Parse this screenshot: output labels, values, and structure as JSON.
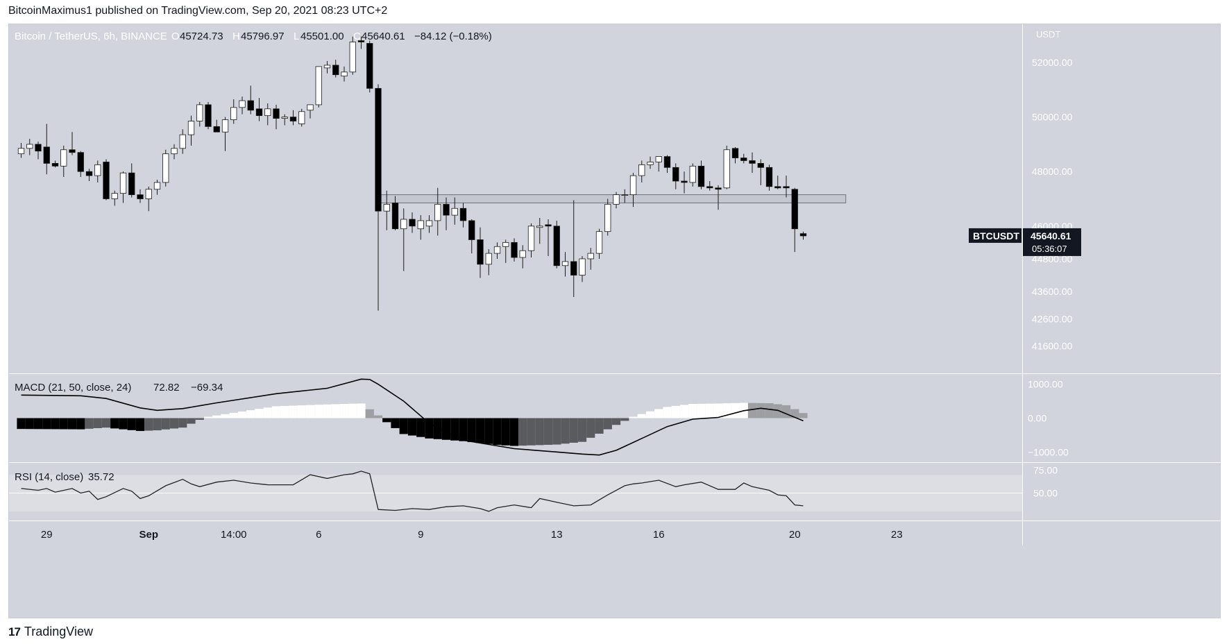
{
  "header": {
    "publish_line": "BitcoinMaximus1 published on TradingView.com, Sep 20, 2021 08:23 UTC+2"
  },
  "footer": {
    "brand_mark": "17",
    "brand": "TradingView"
  },
  "colors": {
    "background": "#d1d4dc",
    "up_body": "#ffffff",
    "down_body": "#000000",
    "wick": "#1a1a1a",
    "zone_fill": "#c4c7cf",
    "zone_stroke": "#6e7079",
    "macd_line": "#000000",
    "rsi_band": "#dcdee4",
    "hist_pos_rising": "#ffffff",
    "hist_pos_falling": "#9e9fa3",
    "hist_neg_falling": "#000000",
    "hist_neg_rising": "#5a5b5e"
  },
  "chart_data": [
    {
      "type": "candlestick",
      "symbol": "Bitcoin / TetherUS, 6h, BINANCE",
      "ohlc_legend": {
        "o_label": "O",
        "o_value": "45724.73",
        "h_label": "H",
        "h_value": "45796.97",
        "l_label": "L",
        "l_value": "45501.00",
        "c_label": "C",
        "c_value": "45640.61",
        "change": "−84.12 (−0.18%)"
      },
      "currency_label": "USDT",
      "ylim": [
        40600,
        53400
      ],
      "y_ticks": [
        "52000.00",
        "50000.00",
        "48000.00",
        "46000.00",
        "44800.00",
        "43600.00",
        "42600.00",
        "41600.00"
      ],
      "y_tick_values": [
        52000,
        50000,
        48000,
        46000,
        44800,
        43600,
        42600,
        41600
      ],
      "price_badge": {
        "symbol": "BTCUSDT",
        "price": "45640.61",
        "countdown": "05:36:07",
        "value": 45640.61
      },
      "support_zone": {
        "from_index": 42,
        "to_index": 97,
        "low": 46850,
        "high": 47150
      },
      "x_ticks": [
        {
          "label": "29",
          "index": 3
        },
        {
          "label": "Sep",
          "index": 15
        },
        {
          "label": "14:00",
          "index": 25
        },
        {
          "label": "6",
          "index": 35
        },
        {
          "label": "9",
          "index": 47
        },
        {
          "label": "13",
          "index": 63
        },
        {
          "label": "16",
          "index": 75
        },
        {
          "label": "20",
          "index": 91
        },
        {
          "label": "23",
          "index": 103
        }
      ],
      "candles": [
        [
          48650,
          49050,
          48500,
          48850
        ],
        [
          48850,
          49200,
          48600,
          49000
        ],
        [
          49000,
          49100,
          48450,
          48750
        ],
        [
          48900,
          49750,
          47900,
          48300
        ],
        [
          48300,
          48400,
          48150,
          48200
        ],
        [
          48200,
          48950,
          47800,
          48800
        ],
        [
          48800,
          49450,
          48600,
          48700
        ],
        [
          48700,
          48750,
          47800,
          48000
        ],
        [
          48000,
          48100,
          47650,
          47850
        ],
        [
          47850,
          48400,
          47600,
          48250
        ],
        [
          48350,
          48450,
          46950,
          47000
        ],
        [
          47000,
          47300,
          46750,
          47200
        ],
        [
          47200,
          48000,
          46850,
          47950
        ],
        [
          47950,
          48300,
          47050,
          47150
        ],
        [
          47150,
          47350,
          46850,
          47000
        ],
        [
          47000,
          47450,
          46550,
          47350
        ],
        [
          47350,
          47700,
          47150,
          47600
        ],
        [
          47600,
          48800,
          47450,
          48650
        ],
        [
          48650,
          49000,
          48450,
          48850
        ],
        [
          48850,
          49550,
          48650,
          49350
        ],
        [
          49350,
          50050,
          48950,
          49850
        ],
        [
          49850,
          50550,
          49650,
          50450
        ],
        [
          50450,
          50550,
          49550,
          49650
        ],
        [
          49650,
          49900,
          49450,
          49450
        ],
        [
          49450,
          50000,
          48750,
          49900
        ],
        [
          49900,
          50650,
          49750,
          50350
        ],
        [
          50350,
          50750,
          50100,
          50600
        ],
        [
          50600,
          51150,
          50100,
          50250
        ],
        [
          50300,
          50700,
          49850,
          50050
        ],
        [
          50050,
          50500,
          49700,
          50300
        ],
        [
          50300,
          50450,
          49550,
          49950
        ],
        [
          49950,
          50100,
          49700,
          50000
        ],
        [
          50000,
          50250,
          49700,
          49850
        ],
        [
          49750,
          50300,
          49650,
          50200
        ],
        [
          50250,
          50450,
          49950,
          50450
        ],
        [
          50450,
          51850,
          50350,
          51850
        ],
        [
          51800,
          52050,
          51600,
          51900
        ],
        [
          51900,
          52100,
          51450,
          51550
        ],
        [
          51500,
          51850,
          51300,
          51650
        ],
        [
          51650,
          52950,
          51550,
          52750
        ],
        [
          52800,
          52950,
          52500,
          52750
        ],
        [
          52700,
          52800,
          50900,
          51050
        ],
        [
          51050,
          51200,
          42900,
          46550
        ],
        [
          46550,
          47300,
          45850,
          46800
        ],
        [
          46850,
          47100,
          45850,
          45900
        ],
        [
          45900,
          46650,
          44350,
          46250
        ],
        [
          46250,
          46500,
          45750,
          46000
        ],
        [
          45900,
          46400,
          45500,
          46200
        ],
        [
          46000,
          46400,
          45750,
          46200
        ],
        [
          46200,
          47400,
          45650,
          46800
        ],
        [
          46800,
          47050,
          45850,
          46400
        ],
        [
          46400,
          47050,
          46050,
          46650
        ],
        [
          46650,
          46850,
          45950,
          46200
        ],
        [
          46200,
          46250,
          45000,
          45500
        ],
        [
          45500,
          45950,
          44100,
          44600
        ],
        [
          44600,
          45150,
          44200,
          45000
        ],
        [
          45000,
          45400,
          44800,
          45250
        ],
        [
          45250,
          45500,
          44650,
          45400
        ],
        [
          45400,
          45550,
          44700,
          44850
        ],
        [
          44850,
          45300,
          44450,
          45100
        ],
        [
          45100,
          46100,
          44850,
          46000
        ],
        [
          45950,
          46300,
          45350,
          46000
        ],
        [
          46050,
          46250,
          44900,
          46000
        ],
        [
          46000,
          46200,
          44450,
          44550
        ],
        [
          44550,
          45050,
          44150,
          44700
        ],
        [
          44700,
          46950,
          43400,
          44200
        ],
        [
          44200,
          44900,
          43950,
          44800
        ],
        [
          44800,
          45200,
          44400,
          45000
        ],
        [
          45000,
          45900,
          44800,
          45800
        ],
        [
          45800,
          47000,
          45650,
          46800
        ],
        [
          46800,
          47250,
          46650,
          47150
        ],
        [
          47150,
          47350,
          46850,
          47150
        ],
        [
          47150,
          47950,
          46700,
          47850
        ],
        [
          47850,
          48400,
          47600,
          48250
        ],
        [
          48250,
          48550,
          48100,
          48350
        ],
        [
          48350,
          48550,
          48000,
          48550
        ],
        [
          48550,
          48600,
          47950,
          48150
        ],
        [
          48150,
          48300,
          47350,
          47650
        ],
        [
          47650,
          48000,
          47200,
          47600
        ],
        [
          47600,
          48300,
          47450,
          48200
        ],
        [
          48200,
          48400,
          47350,
          47450
        ],
        [
          47450,
          47650,
          47300,
          47400
        ],
        [
          47400,
          47500,
          46600,
          47350
        ],
        [
          47400,
          48950,
          47350,
          48800
        ],
        [
          48850,
          48900,
          48300,
          48500
        ],
        [
          48500,
          48650,
          48300,
          48400
        ],
        [
          48400,
          48700,
          47950,
          48300
        ],
        [
          48300,
          48450,
          47500,
          48150
        ],
        [
          48150,
          48250,
          47300,
          47450
        ],
        [
          47450,
          47850,
          47350,
          47400
        ],
        [
          47450,
          47850,
          47050,
          47400
        ],
        [
          47350,
          47400,
          45050,
          45900
        ],
        [
          45724.73,
          45796.97,
          45501.0,
          45640.61
        ]
      ]
    },
    {
      "type": "line",
      "name": "MACD (21, 50, close, 24)",
      "legend_values": [
        "72.82",
        "−69.34"
      ],
      "ylim": [
        -1300,
        1300
      ],
      "y_ticks": [
        "1000.00",
        "0.00",
        "−1000.00"
      ],
      "y_tick_values": [
        1000,
        0,
        -1000
      ],
      "macd_points": [
        [
          0,
          680
        ],
        [
          7,
          660
        ],
        [
          10,
          580
        ],
        [
          14,
          300
        ],
        [
          16,
          230
        ],
        [
          19,
          280
        ],
        [
          23,
          450
        ],
        [
          30,
          720
        ],
        [
          36,
          880
        ],
        [
          40,
          1150
        ],
        [
          41,
          1140
        ],
        [
          42,
          1000
        ],
        [
          45,
          500
        ],
        [
          48,
          -150
        ],
        [
          52,
          -650
        ],
        [
          58,
          -900
        ],
        [
          63,
          -1000
        ],
        [
          66,
          -1060
        ],
        [
          68,
          -1090
        ],
        [
          70,
          -950
        ],
        [
          73,
          -600
        ],
        [
          76,
          -250
        ],
        [
          79,
          -30
        ],
        [
          82,
          20
        ],
        [
          85,
          220
        ],
        [
          87,
          290
        ],
        [
          89,
          230
        ],
        [
          92,
          -80
        ]
      ],
      "histogram_points": [
        [
          0,
          -320
        ],
        [
          7,
          -330
        ],
        [
          10,
          -280
        ],
        [
          14,
          -380
        ],
        [
          16,
          -360
        ],
        [
          19,
          -280
        ],
        [
          21,
          -50
        ],
        [
          22,
          40
        ],
        [
          30,
          350
        ],
        [
          38,
          420
        ],
        [
          40,
          430
        ],
        [
          41,
          260
        ],
        [
          42,
          80
        ],
        [
          43,
          -120
        ],
        [
          45,
          -470
        ],
        [
          48,
          -600
        ],
        [
          52,
          -680
        ],
        [
          56,
          -790
        ],
        [
          58,
          -820
        ],
        [
          63,
          -780
        ],
        [
          66,
          -700
        ],
        [
          68,
          -460
        ],
        [
          70,
          -200
        ],
        [
          72,
          40
        ],
        [
          74,
          200
        ],
        [
          76,
          330
        ],
        [
          79,
          420
        ],
        [
          82,
          430
        ],
        [
          85,
          450
        ],
        [
          88,
          440
        ],
        [
          90,
          380
        ],
        [
          92,
          150
        ]
      ]
    },
    {
      "type": "line",
      "name": "RSI (14, close)",
      "legend_value": "35.72",
      "ylim": [
        20,
        83
      ],
      "band": [
        30,
        70
      ],
      "y_ticks": [
        "75.00",
        "50.00"
      ],
      "y_tick_values": [
        75,
        50
      ],
      "points": [
        [
          0,
          55
        ],
        [
          2,
          53
        ],
        [
          3,
          55
        ],
        [
          4,
          51
        ],
        [
          6,
          55
        ],
        [
          7,
          50
        ],
        [
          8,
          52
        ],
        [
          9,
          43
        ],
        [
          10,
          46
        ],
        [
          12,
          55
        ],
        [
          13,
          52
        ],
        [
          14,
          44
        ],
        [
          15,
          47
        ],
        [
          17,
          58
        ],
        [
          19,
          65
        ],
        [
          20,
          60
        ],
        [
          21,
          57
        ],
        [
          23,
          62
        ],
        [
          25,
          64
        ],
        [
          27,
          61
        ],
        [
          29,
          59
        ],
        [
          31,
          59
        ],
        [
          32,
          59
        ],
        [
          34,
          70
        ],
        [
          36,
          66
        ],
        [
          38,
          70
        ],
        [
          39,
          71
        ],
        [
          40,
          74
        ],
        [
          41,
          71
        ],
        [
          42,
          32
        ],
        [
          44,
          31
        ],
        [
          46,
          33
        ],
        [
          48,
          32
        ],
        [
          50,
          35
        ],
        [
          52,
          36
        ],
        [
          54,
          33
        ],
        [
          55,
          30
        ],
        [
          56,
          34
        ],
        [
          58,
          37
        ],
        [
          60,
          34
        ],
        [
          61,
          44
        ],
        [
          63,
          40
        ],
        [
          65,
          36
        ],
        [
          67,
          37
        ],
        [
          69,
          48
        ],
        [
          71,
          58
        ],
        [
          72,
          60
        ],
        [
          73,
          61
        ],
        [
          75,
          64
        ],
        [
          77,
          57
        ],
        [
          78,
          59
        ],
        [
          80,
          62
        ],
        [
          82,
          54
        ],
        [
          84,
          54
        ],
        [
          85,
          61
        ],
        [
          86,
          57
        ],
        [
          88,
          53
        ],
        [
          89,
          48
        ],
        [
          90,
          47
        ],
        [
          91,
          37
        ],
        [
          92,
          36
        ]
      ]
    }
  ]
}
